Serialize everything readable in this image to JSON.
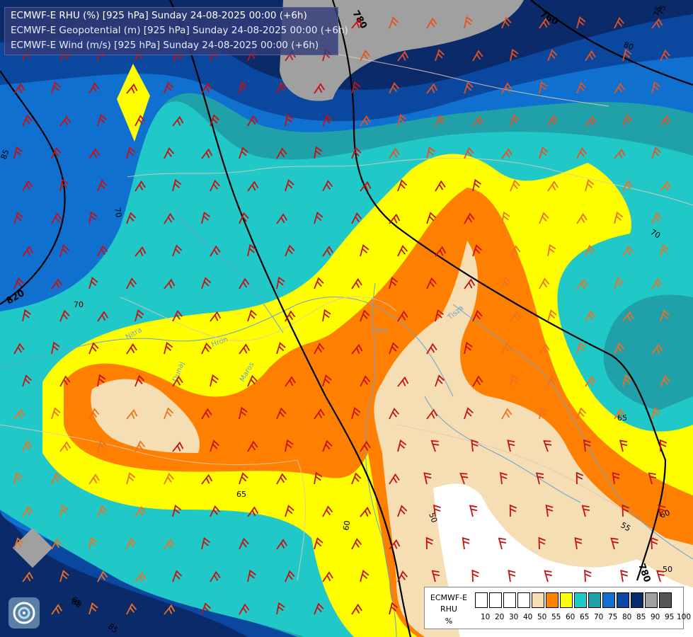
{
  "header": {
    "line1": "ECMWF-E RHU (%) [925 hPa] Sunday 24-08-2025 00:00 (+6h)",
    "line2": "ECMWF-E Geopotential (m) [925 hPa] Sunday 24-08-2025 00:00 (+6h)",
    "line3": "ECMWF-E Wind (m/s) [925 hPa] Sunday 24-08-2025 00:00 (+6h)"
  },
  "legend": {
    "title_lines": [
      "ECMWF-E",
      "RHU",
      "%"
    ],
    "colors": [
      "#ffffff",
      "#ffffff",
      "#ffffff",
      "#ffffff",
      "#f5deb3",
      "#ff8000",
      "#ffff00",
      "#20c8c8",
      "#20a0a8",
      "#1070d0",
      "#0a48a0",
      "#0a2a6a",
      "#a0a0a0",
      "#555555"
    ],
    "ticks": [
      "10",
      "20",
      "30",
      "40",
      "50",
      "55",
      "60",
      "65",
      "70",
      "75",
      "80",
      "85",
      "90",
      "95",
      "100"
    ]
  },
  "map_labels": {
    "isohypses": [
      "760",
      "780",
      "780",
      "820"
    ],
    "rhu_contours": [
      "85",
      "80",
      "75",
      "70",
      "70",
      "70",
      "65",
      "65",
      "65",
      "60",
      "60",
      "55",
      "50",
      "50",
      "75",
      "80",
      "85"
    ],
    "places": [
      "Nitra",
      "Hron",
      "Dunaj",
      "Pest",
      "Tisza",
      "Maros"
    ]
  },
  "palette": {
    "bg": "#0a2a6a",
    "c85": "#0a2a6a",
    "c80": "#0a48a0",
    "c75": "#1070d0",
    "c70": "#20a0a8",
    "c65": "#20c8c8",
    "c60": "#ffff00",
    "c55": "#ff8000",
    "c50": "#f5deb3",
    "cLow": "#ffffff",
    "grey": "#a0a0a0",
    "river": "#6aa0d8",
    "border": "#e0c8b0",
    "isohypse": "#000000"
  },
  "logo": "ecmwf-swirl-icon"
}
